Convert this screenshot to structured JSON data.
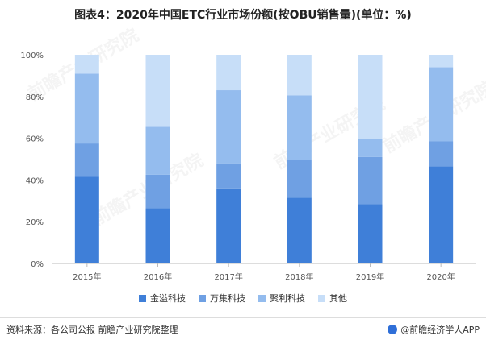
{
  "page": {
    "title": "图表4：2020年中国ETC行业市场份额(按OBU销售量)(单位：%)",
    "source": "资料来源：各公司公报 前瞻产业研究院整理",
    "brand": "@前瞻经济学人APP",
    "watermark": "前瞻产业研究院"
  },
  "chart_data": {
    "type": "bar",
    "stacked": true,
    "categories": [
      "2015年",
      "2016年",
      "2017年",
      "2018年",
      "2019年",
      "2020年"
    ],
    "series": [
      {
        "name": "金溢科技",
        "color": "#3f7fd8",
        "values": [
          41.5,
          26.5,
          36,
          31.5,
          28.5,
          46.5
        ]
      },
      {
        "name": "万集科技",
        "color": "#6fa0e3",
        "values": [
          16,
          16,
          12,
          18,
          22.5,
          12
        ]
      },
      {
        "name": "聚利科技",
        "color": "#94bcee",
        "values": [
          33.5,
          23,
          35,
          31,
          8.5,
          35.5
        ]
      },
      {
        "name": "其他",
        "color": "#c7def8",
        "values": [
          9,
          34.5,
          17,
          19.5,
          40.5,
          6
        ]
      }
    ],
    "y_ticks": [
      "0%",
      "20%",
      "40%",
      "60%",
      "80%",
      "100%"
    ],
    "ylim": [
      0,
      100
    ],
    "grid": false,
    "legend": "bottom"
  }
}
